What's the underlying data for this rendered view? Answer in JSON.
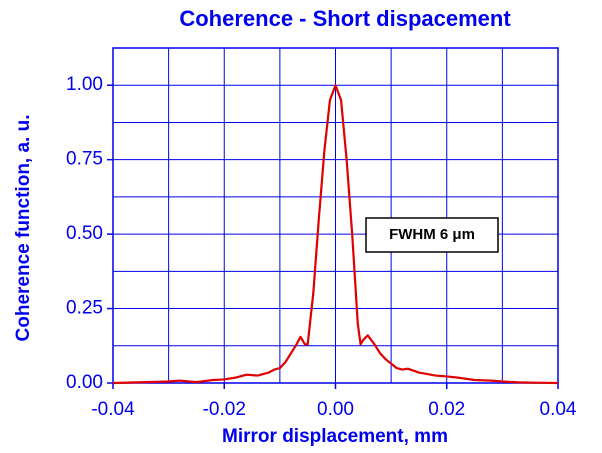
{
  "chart_data": {
    "type": "line",
    "title": "Coherence - Short dispacement",
    "x_label": "Mirror displacement, mm",
    "y_label": "Coherence function, a. u.",
    "annotation": "FWHM 6 μm",
    "xlim": [
      -0.04,
      0.04
    ],
    "ylim": [
      0,
      1.125
    ],
    "xticks": [
      {
        "value": -0.04,
        "label": "-0.04"
      },
      {
        "value": -0.02,
        "label": "-0.02"
      },
      {
        "value": 0,
        "label": "0.00"
      },
      {
        "value": 0.02,
        "label": "0.02"
      },
      {
        "value": 0.04,
        "label": "0.04"
      }
    ],
    "yticks": [
      {
        "value": 0,
        "label": "0.00"
      },
      {
        "value": 0.25,
        "label": "0.25"
      },
      {
        "value": 0.5,
        "label": "0.50"
      },
      {
        "value": 0.75,
        "label": "0.75"
      },
      {
        "value": 1,
        "label": "1.00"
      }
    ],
    "xminor": [
      -0.03,
      -0.01,
      0.01,
      0.03
    ],
    "yminor": [
      0.125,
      0.375,
      0.625,
      0.875,
      1.125
    ],
    "grid": true,
    "color": "#0000ee",
    "series": [
      {
        "color": "#e00000",
        "x": [
          -0.04,
          -0.03,
          -0.028,
          -0.025,
          -0.022,
          -0.02,
          -0.018,
          -0.016,
          -0.014,
          -0.012,
          -0.011,
          -0.01,
          -0.009,
          -0.008,
          -0.007,
          -0.0063,
          -0.0055,
          -0.005,
          -0.004,
          -0.003,
          -0.002,
          -0.001,
          0,
          0.001,
          0.002,
          0.003,
          0.004,
          0.0045,
          0.005,
          0.0058,
          0.007,
          0.008,
          0.009,
          0.01,
          0.011,
          0.012,
          0.013,
          0.015,
          0.018,
          0.02,
          0.022,
          0.025,
          0.028,
          0.03,
          0.033,
          0.036,
          0.04
        ],
        "values": [
          0,
          0.005,
          0.008,
          0.003,
          0.01,
          0.012,
          0.018,
          0.028,
          0.025,
          0.035,
          0.045,
          0.05,
          0.07,
          0.1,
          0.13,
          0.155,
          0.13,
          0.13,
          0.3,
          0.55,
          0.78,
          0.95,
          1.0,
          0.95,
          0.75,
          0.5,
          0.2,
          0.13,
          0.145,
          0.16,
          0.13,
          0.1,
          0.08,
          0.065,
          0.05,
          0.045,
          0.048,
          0.035,
          0.025,
          0.022,
          0.018,
          0.01,
          0.008,
          0.005,
          0.002,
          0.001,
          0
        ]
      }
    ]
  }
}
